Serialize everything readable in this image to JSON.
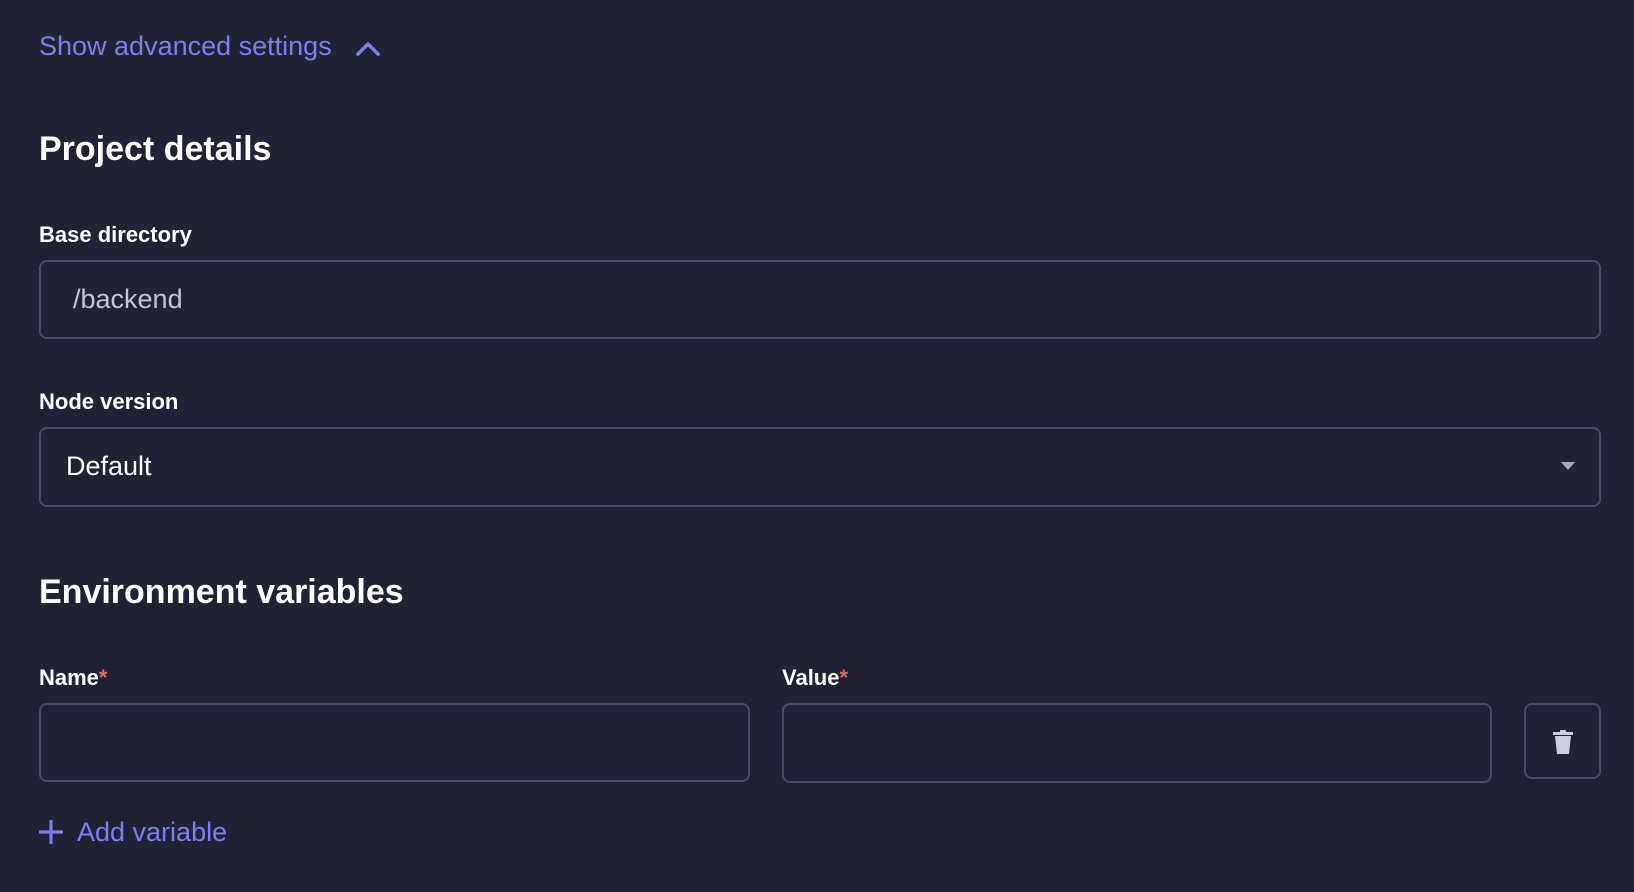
{
  "advanced": {
    "toggle_label": "Show advanced settings",
    "icon": "chevron-up-icon"
  },
  "project": {
    "title": "Project details",
    "base_directory": {
      "label": "Base directory",
      "value": "/backend"
    },
    "node_version": {
      "label": "Node version",
      "selected": "Default"
    }
  },
  "env": {
    "title": "Environment variables",
    "name_label": "Name",
    "value_label": "Value",
    "required_mark": "*",
    "rows": [
      {
        "name": "",
        "value": ""
      }
    ],
    "add_label": "Add variable"
  },
  "colors": {
    "background": "#212234",
    "accent": "#7c80f2",
    "border": "#4b4c6b",
    "required": "#e5675a"
  }
}
